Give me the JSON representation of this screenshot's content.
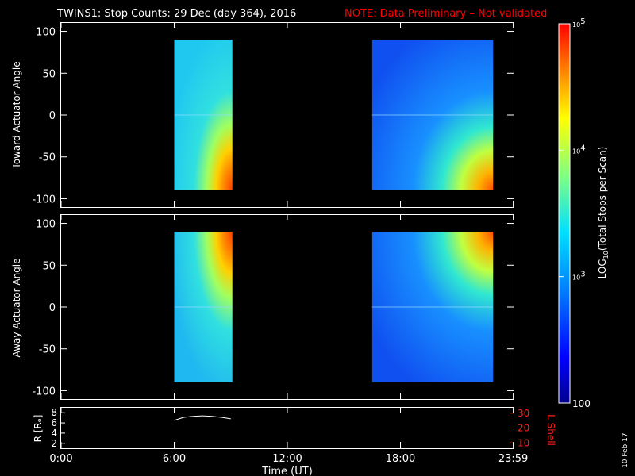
{
  "header": {
    "title": "TWINS1: Stop Counts: 29 Dec (day 364), 2016",
    "note": "NOTE: Data Preliminary – Not validated"
  },
  "side_stamp": "10 Feb 17",
  "colors": {
    "background": "#000000",
    "note": "#ff0000",
    "lshell": "#ff2020",
    "text": "#ffffff"
  },
  "chart_data": [
    {
      "type": "heatmap",
      "panel": "toward",
      "ylabel": "Toward Actuator Angle",
      "ylim": [
        -110,
        110
      ],
      "yticks": [
        -100,
        -50,
        0,
        50,
        100
      ],
      "x_range_hours": [
        0,
        24
      ],
      "data_blocks": [
        {
          "start": "6:00",
          "end": "9:05",
          "y_range": [
            -90,
            90
          ]
        },
        {
          "start": "16:30",
          "end": "22:55",
          "y_range": [
            -90,
            90
          ]
        }
      ]
    },
    {
      "type": "heatmap",
      "panel": "away",
      "ylabel": "Away Actuator Angle",
      "ylim": [
        -110,
        110
      ],
      "yticks": [
        -100,
        -50,
        0,
        50,
        100
      ],
      "x_range_hours": [
        0,
        24
      ],
      "data_blocks": [
        {
          "start": "6:00",
          "end": "9:05",
          "y_range": [
            -90,
            90
          ]
        },
        {
          "start": "16:30",
          "end": "22:55",
          "y_range": [
            -90,
            90
          ]
        }
      ]
    },
    {
      "type": "line",
      "panel": "orbit",
      "ylabel_left": "R [Rₑ]",
      "ylabel_right": "L Shell",
      "left_ticks": [
        2,
        4,
        6,
        8
      ],
      "right_ticks": [
        10,
        20,
        30
      ],
      "series": [
        {
          "x_hours": [
            6.0,
            6.5,
            7.0,
            7.5,
            8.0,
            8.5,
            9.0
          ],
          "y": [
            6.5,
            7.1,
            7.3,
            7.4,
            7.3,
            7.1,
            6.8
          ]
        }
      ]
    }
  ],
  "x_axis": {
    "label": "Time (UT)",
    "ticks": [
      "0:00",
      "6:00",
      "12:00",
      "18:00",
      "23:59"
    ],
    "tick_hours": [
      0,
      6,
      12,
      18,
      23.983
    ]
  },
  "colorbar": {
    "label": "LOG10(Total Stops per Scan)",
    "label_prefix": "LOG",
    "label_sub": "10",
    "label_suffix": "(Total Stops per Scan)",
    "ticks": [
      {
        "base": "10",
        "exp": "5",
        "value": 100000
      },
      {
        "base": "10",
        "exp": "4",
        "value": 10000
      },
      {
        "base": "10",
        "exp": "3",
        "value": 1000
      },
      {
        "text": "100",
        "value": 100
      }
    ],
    "range": [
      100,
      100000
    ],
    "scale": "log"
  }
}
